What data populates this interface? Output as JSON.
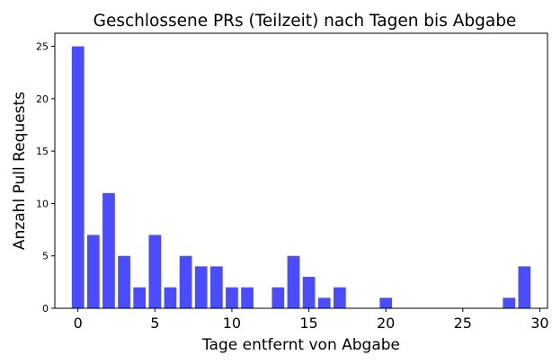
{
  "chart_data": {
    "type": "bar",
    "title": "Geschlossene PRs (Teilzeit) nach Tagen bis Abgabe",
    "xlabel": "Tage entfernt von Abgabe",
    "ylabel": "Anzahl Pull Requests",
    "x": [
      0,
      1,
      2,
      3,
      4,
      5,
      6,
      7,
      8,
      9,
      10,
      11,
      13,
      14,
      15,
      16,
      17,
      20,
      28,
      29
    ],
    "values": [
      25,
      7,
      11,
      5,
      2,
      7,
      2,
      5,
      4,
      4,
      2,
      2,
      2,
      5,
      3,
      1,
      2,
      1,
      1,
      4
    ],
    "xlim": [
      -1.5,
      30.5
    ],
    "ylim": [
      0,
      26.25
    ],
    "xticks": [
      "0",
      "5",
      "10",
      "15",
      "20",
      "25",
      "30"
    ],
    "yticks": [
      "0",
      "5",
      "10",
      "15",
      "20",
      "25"
    ],
    "bar_color": "#4b4bff",
    "grid": false,
    "legend": "none"
  }
}
